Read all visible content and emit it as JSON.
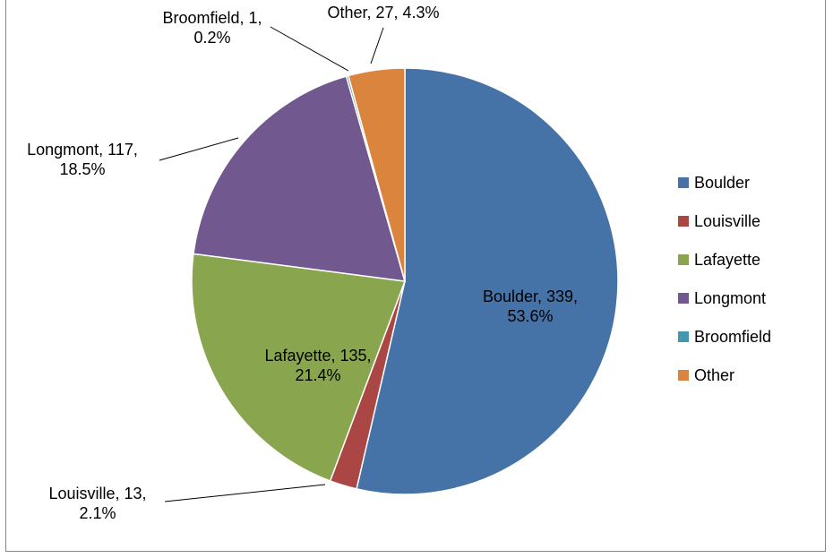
{
  "chart_data": {
    "type": "pie",
    "title": "",
    "slices": [
      {
        "name": "Boulder",
        "value": 339,
        "percent": "53.6%",
        "color": "#4572A7"
      },
      {
        "name": "Louisville",
        "value": 13,
        "percent": "2.1%",
        "color": "#AA4643"
      },
      {
        "name": "Lafayette",
        "value": 135,
        "percent": "21.4%",
        "color": "#89A54E"
      },
      {
        "name": "Longmont",
        "value": 117,
        "percent": "18.5%",
        "color": "#71588F"
      },
      {
        "name": "Broomfield",
        "value": 1,
        "percent": "0.2%",
        "color": "#4198AF"
      },
      {
        "name": "Other",
        "value": 27,
        "percent": "4.3%",
        "color": "#DB843D"
      }
    ],
    "data_labels": [
      {
        "name": "Boulder",
        "lines": [
          "Boulder, 339,",
          "53.6%"
        ]
      },
      {
        "name": "Louisville",
        "lines": [
          "Louisville, 13,",
          "2.1%"
        ]
      },
      {
        "name": "Lafayette",
        "lines": [
          "Lafayette, 135,",
          "21.4%"
        ]
      },
      {
        "name": "Longmont",
        "lines": [
          "Longmont, 117,",
          "18.5%"
        ]
      },
      {
        "name": "Broomfield",
        "lines": [
          "Broomfield, 1,",
          "0.2%"
        ]
      },
      {
        "name": "Other",
        "lines": [
          "Other, 27, 4.3%"
        ]
      }
    ],
    "legend_position": "right",
    "legend": [
      "Boulder",
      "Louisville",
      "Lafayette",
      "Longmont",
      "Broomfield",
      "Other"
    ]
  }
}
